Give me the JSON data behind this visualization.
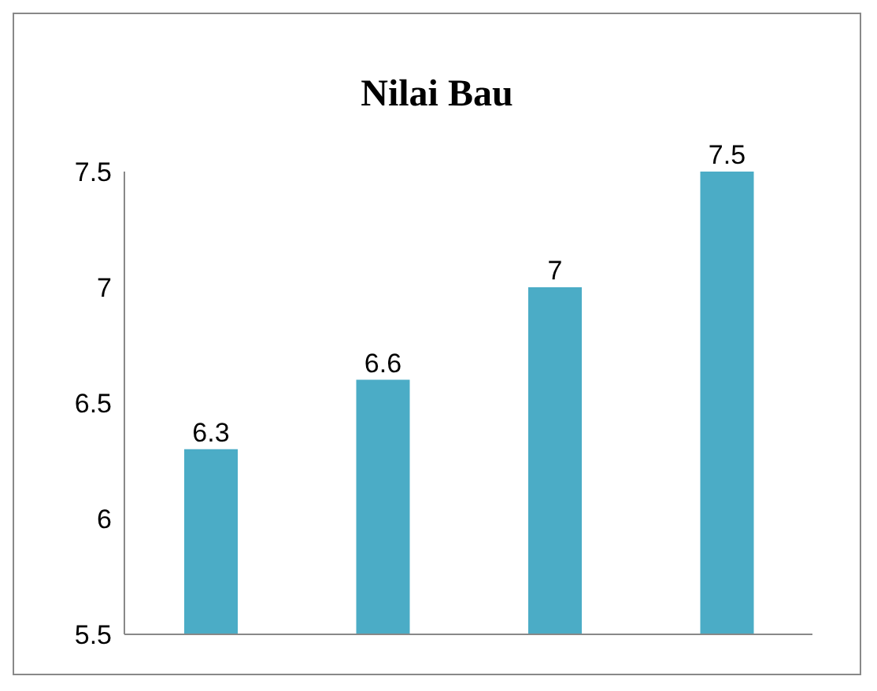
{
  "chart_data": {
    "type": "bar",
    "title": "Nilai Bau",
    "categories": [
      null,
      null,
      null,
      null
    ],
    "values": [
      6.3,
      6.6,
      7,
      7.5
    ],
    "color": "#4bacc6",
    "ylim": [
      5.5,
      7.5
    ],
    "yticks": [
      5.5,
      6,
      6.5,
      7,
      7.5
    ],
    "grid": false,
    "data_labels": true,
    "tick_labels": "y"
  }
}
